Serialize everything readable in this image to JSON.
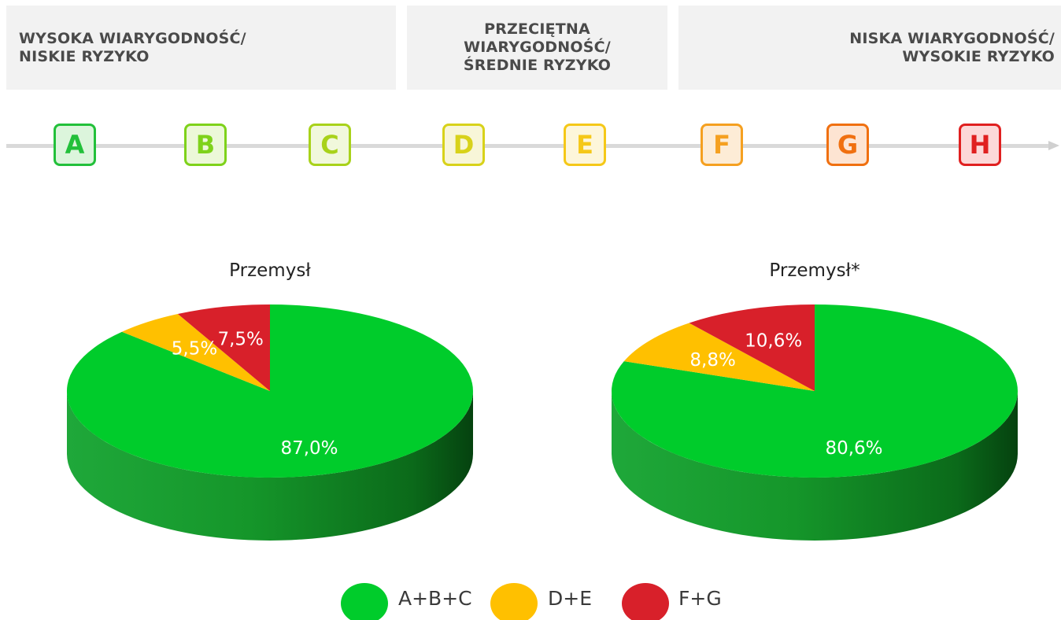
{
  "risk_bands": {
    "high": "WYSOKA WIARYGODNOŚĆ/\nNISKIE RYZYKO",
    "medium": "PRZECIĘTNA\nWIARYGODNOŚĆ/\nŚREDNIE RYZYKO",
    "low": "NISKA WIARYGODNOŚĆ/\nWYSOKIE RYZYKO"
  },
  "grades": [
    {
      "letter": "A",
      "color": "#22c03a",
      "fill": "#dcf5dc"
    },
    {
      "letter": "B",
      "color": "#7ed21a",
      "fill": "#ecf8d8"
    },
    {
      "letter": "C",
      "color": "#a8d21a",
      "fill": "#f1f8dc"
    },
    {
      "letter": "D",
      "color": "#d8d21a",
      "fill": "#f8f6d8"
    },
    {
      "letter": "E",
      "color": "#f5c818",
      "fill": "#fdf6da"
    },
    {
      "letter": "F",
      "color": "#f5a020",
      "fill": "#fdecd6"
    },
    {
      "letter": "G",
      "color": "#f07010",
      "fill": "#fde4d2"
    },
    {
      "letter": "H",
      "color": "#e02020",
      "fill": "#fcd8d8"
    }
  ],
  "legend": [
    {
      "label": "A+B+C",
      "color": "#00cc2b"
    },
    {
      "label": "D+E",
      "color": "#ffc000"
    },
    {
      "label": "F+G",
      "color": "#d8202a"
    }
  ],
  "chart_data": [
    {
      "type": "pie",
      "title": "Przemysł",
      "categories": [
        "A+B+C",
        "D+E",
        "F+G"
      ],
      "values": [
        87.0,
        5.5,
        7.5
      ],
      "labels": [
        "87,0%",
        "5,5%",
        "7,5%"
      ]
    },
    {
      "type": "pie",
      "title": "Przemysł*",
      "categories": [
        "A+B+C",
        "D+E",
        "F+G"
      ],
      "values": [
        80.6,
        8.8,
        10.6
      ],
      "labels": [
        "80,6%",
        "8,8%",
        "10,6%"
      ]
    }
  ]
}
